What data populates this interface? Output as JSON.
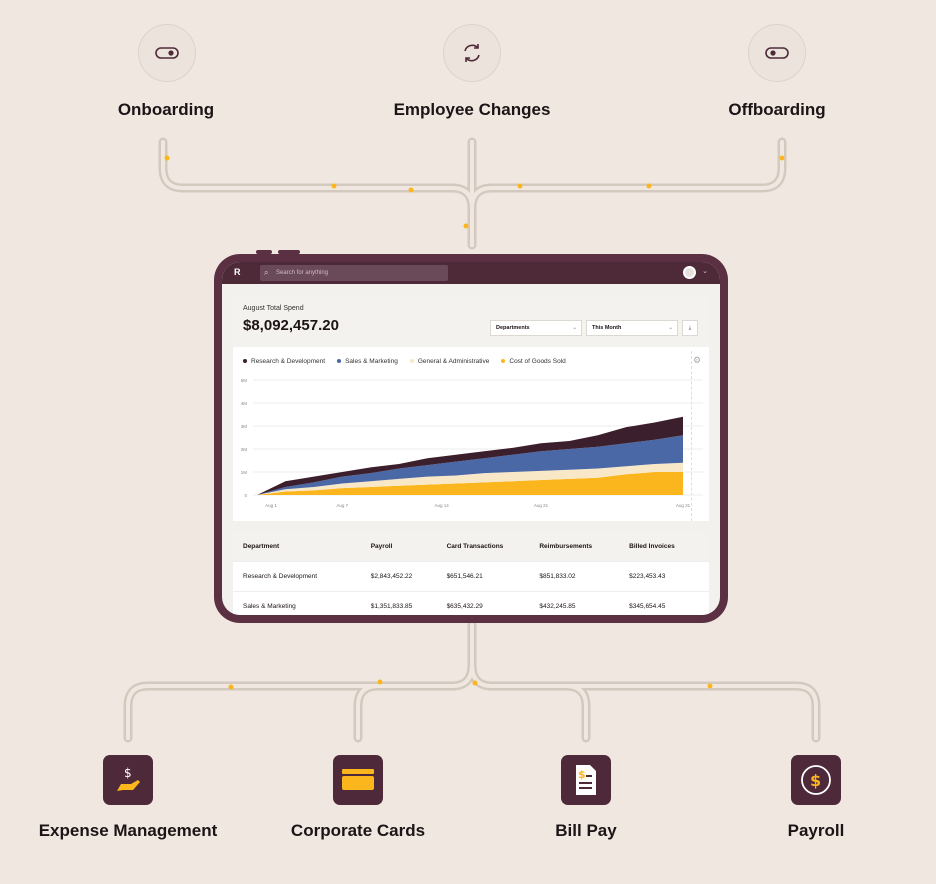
{
  "top_items": [
    {
      "label": "Onboarding",
      "icon": "toggle-icon"
    },
    {
      "label": "Employee Changes",
      "icon": "refresh-icon"
    },
    {
      "label": "Offboarding",
      "icon": "toggle-icon"
    }
  ],
  "bottom_items": [
    {
      "label": "Expense Management",
      "icon": "hand-dollar-icon"
    },
    {
      "label": "Corporate Cards",
      "icon": "credit-card-icon"
    },
    {
      "label": "Bill Pay",
      "icon": "invoice-icon"
    },
    {
      "label": "Payroll",
      "icon": "dollar-coin-icon"
    }
  ],
  "colors": {
    "brand": "#4e2939",
    "accent": "#fbb61e",
    "background": "#f0e8e0"
  },
  "app": {
    "logo": "R",
    "search_placeholder": "Search for anything",
    "spend_label": "August Total Spend",
    "spend_value": "$8,092,457.20",
    "filter_department": "Departments",
    "filter_period": "This Month"
  },
  "chart_data": {
    "type": "area",
    "stacked": true,
    "x": [
      1,
      3,
      5,
      7,
      9,
      11,
      13,
      15,
      17,
      19,
      21,
      23,
      25,
      27,
      29,
      31
    ],
    "x_ticks": [
      "Aug 1",
      "Aug 7",
      "Aug 14",
      "Aug 21",
      "Aug 31"
    ],
    "y_ticks": [
      "0",
      "1M",
      "2M",
      "3M",
      "4M",
      "5M"
    ],
    "ylim": [
      0,
      5000000
    ],
    "legend": "top-left",
    "grid": true,
    "series": [
      {
        "name": "Cost of Goods Sold",
        "color": "#fbb61e",
        "values": [
          0,
          0.15,
          0.2,
          0.3,
          0.35,
          0.4,
          0.45,
          0.5,
          0.55,
          0.6,
          0.65,
          0.7,
          0.75,
          0.9,
          1.0,
          1.0
        ]
      },
      {
        "name": "General & Administrative",
        "color": "#f8e8c8",
        "values": [
          0,
          0.1,
          0.15,
          0.2,
          0.25,
          0.3,
          0.35,
          0.35,
          0.4,
          0.4,
          0.4,
          0.4,
          0.4,
          0.35,
          0.35,
          0.4
        ]
      },
      {
        "name": "Sales & Marketing",
        "color": "#4a68a6",
        "values": [
          0,
          0.1,
          0.2,
          0.3,
          0.35,
          0.45,
          0.5,
          0.6,
          0.65,
          0.75,
          0.85,
          0.9,
          0.95,
          1.0,
          1.05,
          1.2
        ]
      },
      {
        "name": "Research & Development",
        "color": "#3c1f2c",
        "values": [
          0,
          0.25,
          0.25,
          0.2,
          0.25,
          0.2,
          0.3,
          0.3,
          0.3,
          0.3,
          0.35,
          0.35,
          0.5,
          0.7,
          0.75,
          0.8
        ]
      }
    ],
    "legend_order": [
      3,
      2,
      1,
      0
    ],
    "unit": "M"
  },
  "table": {
    "headers": [
      "Department",
      "Payroll",
      "Card Transactions",
      "Reimbursements",
      "Billed Invoices"
    ],
    "rows": [
      [
        "Research & Development",
        "$2,843,452.22",
        "$651,546.21",
        "$851,833.02",
        "$223,453.43"
      ],
      [
        "Sales & Marketing",
        "$1,351,833.85",
        "$635,432.29",
        "$432,245.85",
        "$345,654.45"
      ]
    ]
  }
}
